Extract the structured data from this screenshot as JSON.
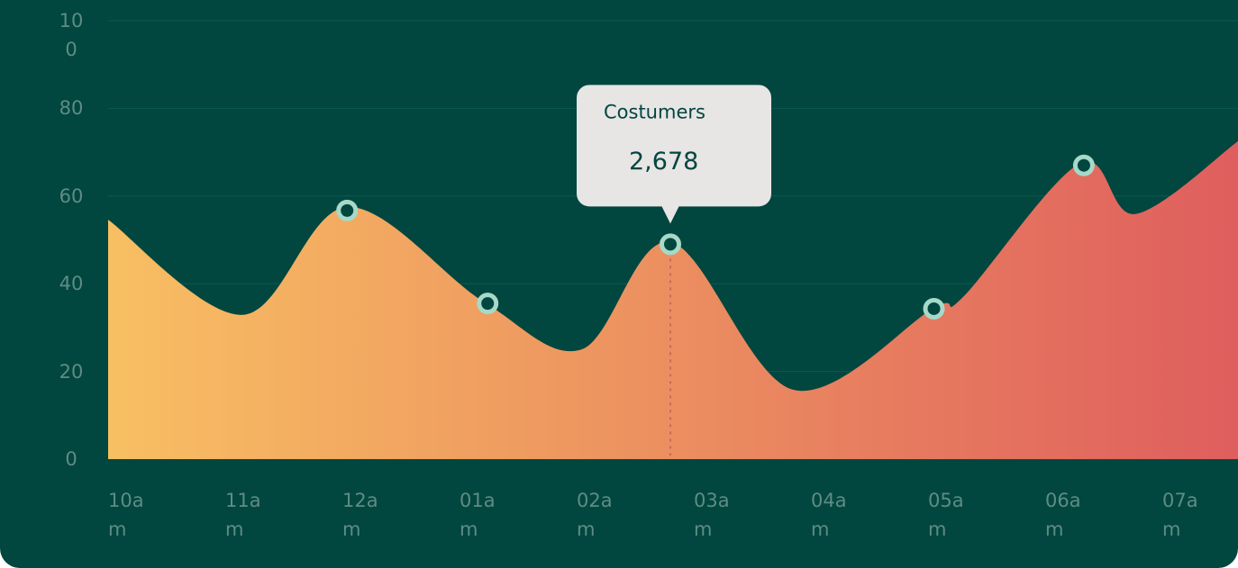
{
  "chart_data": {
    "type": "area",
    "xlim": [
      0,
      9.646
    ],
    "ylim": [
      0,
      100
    ],
    "yticks": [
      0,
      20,
      40,
      60,
      80,
      100
    ],
    "grid": true,
    "xticks": [
      {
        "value": 0,
        "label": "10am"
      },
      {
        "value": 1,
        "label": "11am"
      },
      {
        "value": 2,
        "label": "12am"
      },
      {
        "value": 3,
        "label": "01am"
      },
      {
        "value": 4,
        "label": "02am"
      },
      {
        "value": 5,
        "label": "03am"
      },
      {
        "value": 6,
        "label": "04am"
      },
      {
        "value": 7,
        "label": "05am"
      },
      {
        "value": 8,
        "label": "06am"
      },
      {
        "value": 9,
        "label": "07am"
      }
    ],
    "gradient": [
      "#f8bf62",
      "#df5e5e"
    ],
    "series": [
      {
        "x": [
          0,
          1.15,
          2.04,
          3.2,
          4.04,
          4.8,
          5.85,
          7.05,
          7.3,
          8.3,
          8.77,
          9.646
        ],
        "values": [
          54.6,
          32.9,
          57.5,
          36,
          25,
          49.5,
          15.8,
          34.5,
          37,
          67.5,
          55.9,
          72.5
        ]
      }
    ],
    "markers": {
      "color": "#a6d9c8",
      "x": [
        2.04,
        3.24,
        4.8,
        7.05,
        8.33
      ],
      "values": [
        56.7,
        35.5,
        49,
        34.3,
        67
      ]
    },
    "tooltip": {
      "marker": 2,
      "title": "Costumers",
      "value_label": "2,678"
    }
  }
}
